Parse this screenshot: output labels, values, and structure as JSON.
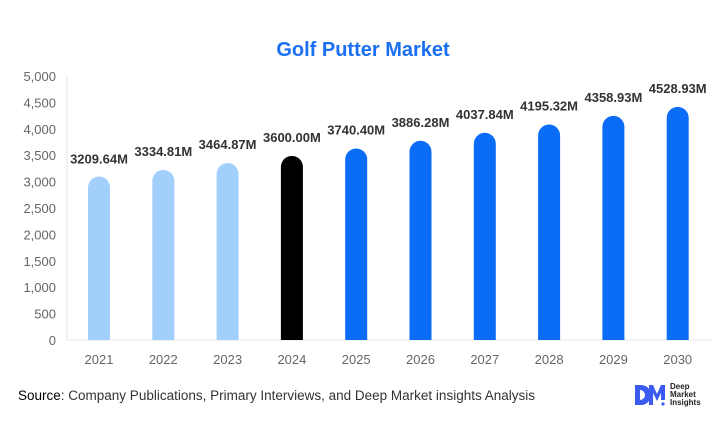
{
  "chart_data": {
    "type": "bar",
    "title": "Golf Putter Market",
    "categories": [
      "2021",
      "2022",
      "2023",
      "2024",
      "2025",
      "2026",
      "2027",
      "2028",
      "2029",
      "2030"
    ],
    "values": [
      3209.64,
      3334.81,
      3464.87,
      3600.0,
      3740.4,
      3886.28,
      4037.84,
      4195.32,
      4358.93,
      4528.93
    ],
    "data_labels": [
      "3209.64M",
      "3334.81M",
      "3464.87M",
      "3600.00M",
      "3740.40M",
      "3886.28M",
      "4037.84M",
      "4195.32M",
      "4358.93M",
      "4528.93M"
    ],
    "ylim": [
      0,
      5000
    ],
    "yticks": [
      0,
      500,
      1000,
      1500,
      2000,
      2500,
      3000,
      3500,
      4000,
      4500,
      5000
    ],
    "ytick_labels": [
      "0",
      "500",
      "1,000",
      "1,500",
      "2,000",
      "2,500",
      "3,000",
      "3,500",
      "4,000",
      "4,500",
      "5,000"
    ],
    "xlabel": "",
    "ylabel": "",
    "grid": false,
    "bar_colors": [
      "#a3cffc",
      "#a3cffc",
      "#a3cffc",
      "#000000",
      "#0a6cf7",
      "#0a6cf7",
      "#0a6cf7",
      "#0a6cf7",
      "#0a6cf7",
      "#0a6cf7"
    ]
  },
  "source": {
    "label": "Source",
    "text": ": Company Publications, Primary Interviews, and Deep Market insights Analysis"
  },
  "logo": {
    "mark": "DM",
    "lines": [
      "Deep",
      "Market",
      "Insights"
    ],
    "color": "#3b5bf0"
  }
}
